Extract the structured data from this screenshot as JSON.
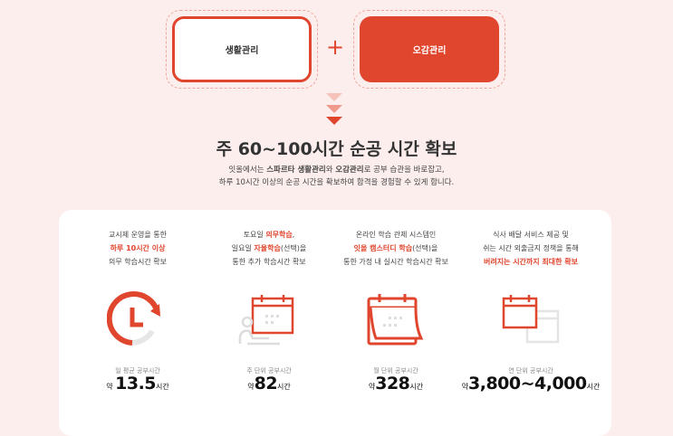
{
  "top": {
    "left_box": "생활관리",
    "right_box": "오감관리",
    "plus": "+"
  },
  "colors": {
    "accent": "#e0452e",
    "background": "#fdeeee"
  },
  "headline": "주 60~100시간 순공 시간 확보",
  "description": {
    "line1_a": "잇올에서는 ",
    "line1_b": "스파르타 생활관리",
    "line1_c": "와 ",
    "line1_d": "오감관리",
    "line1_e": "로 공부 습관을 바로잡고,",
    "line2": "하루 10시간 이상의 순공 시간을 확보하여 합격을 경험할 수 있게 합니다."
  },
  "features": [
    {
      "l1": "교시제 운영을 통한",
      "l2": "하루 10시간 이상",
      "l3": "의무 학습시간 확보",
      "icon": "clock-refresh-icon",
      "stat_label": "일 평균 공부시간",
      "prefix": "약",
      "value": "13.5",
      "unit": "시간"
    },
    {
      "l1a": "토요일 ",
      "l1b": "의무학습",
      "l1c": ",",
      "l2a": "일요일 ",
      "l2b": "자율학습",
      "l2c": "(선택)을",
      "l3": "통한 추가 학습시간 확보",
      "icon": "person-calendar-icon",
      "stat_label": "주 단위 공부시간",
      "prefix": "약",
      "value": "82",
      "unit": "시간"
    },
    {
      "l1": "온라인 학습 관제 시스템인",
      "l2a": "잇올 캠스터디 학습",
      "l2b": "(선택)을",
      "l3": "통한 가정 내 실시간 학습시간 확보",
      "icon": "calendar-icon",
      "stat_label": "월 단위 공부시간",
      "prefix": "약",
      "value": "328",
      "unit": "시간"
    },
    {
      "l1": "식사 배달 서비스 제공 및",
      "l2": "쉬는 시간 외출금지 정책을 통해",
      "l3": "버려지는 시간까지 최대한 확보",
      "icon": "double-calendar-icon",
      "stat_label": "연 단위 공부시간",
      "prefix": "약",
      "value": "3,800~4,000",
      "unit": "시간"
    }
  ]
}
